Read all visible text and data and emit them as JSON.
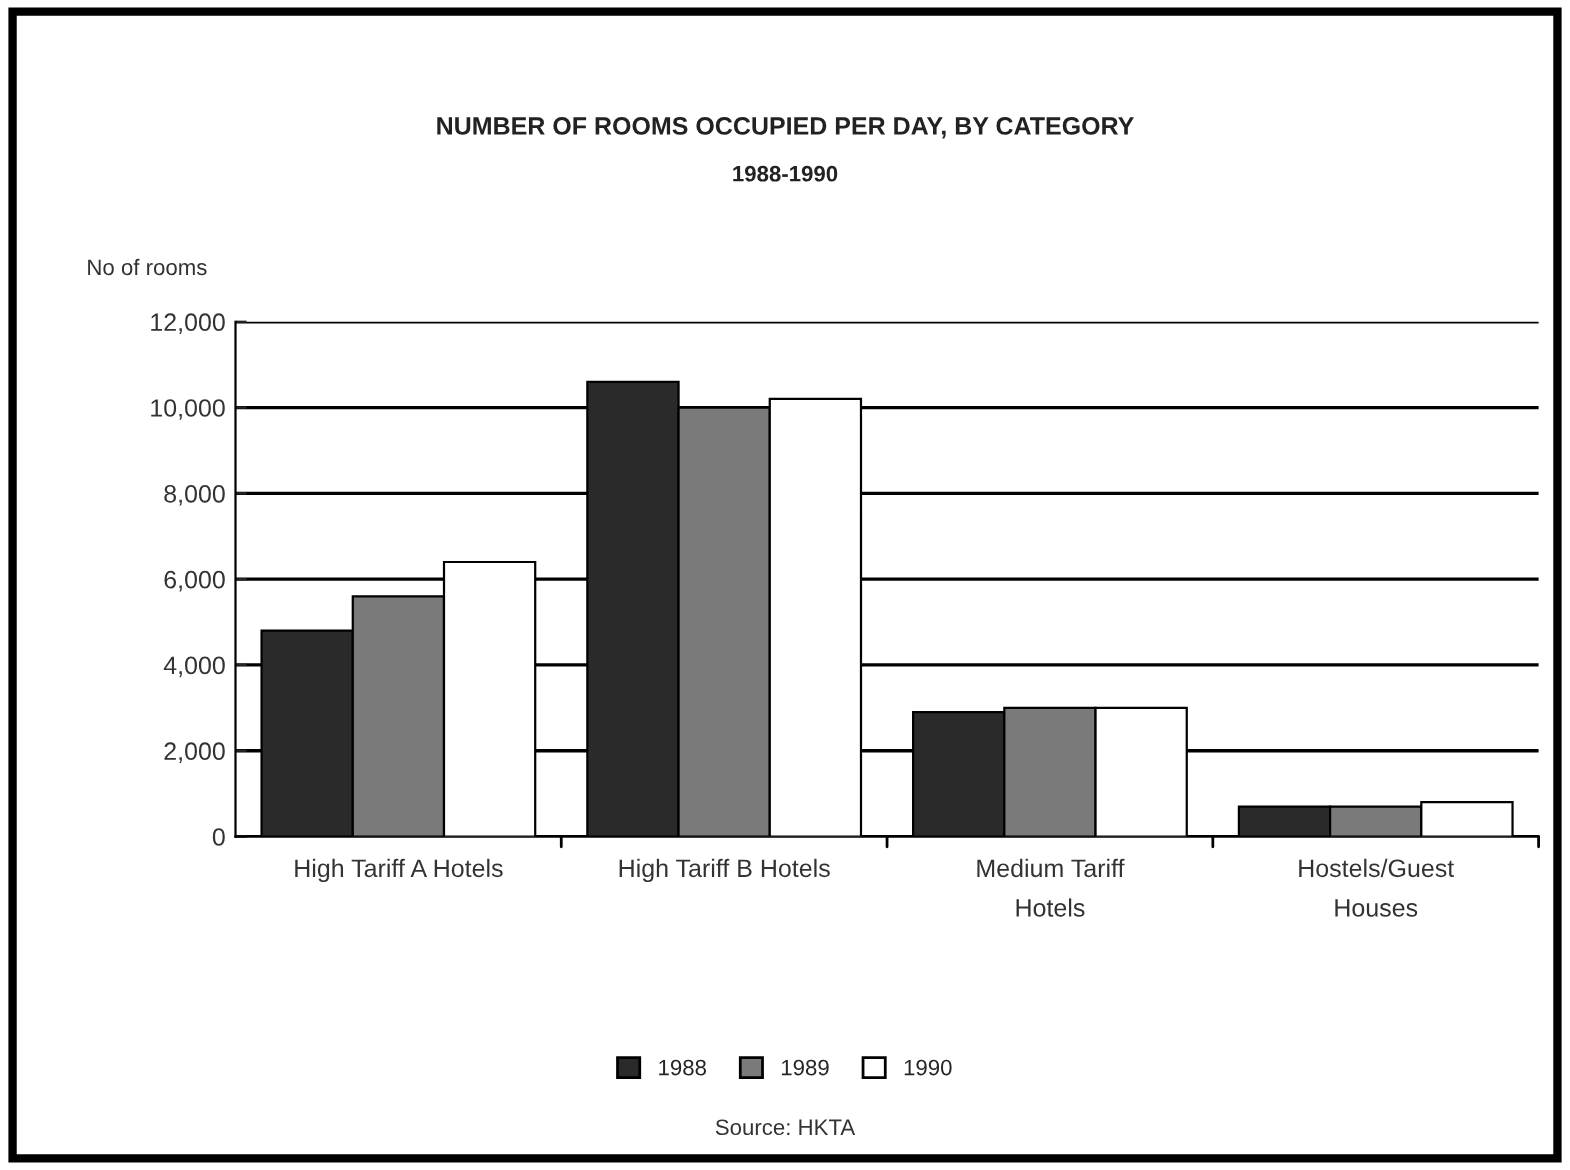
{
  "chart_data": {
    "type": "bar",
    "title": "NUMBER OF ROOMS OCCUPIED PER DAY, BY CATEGORY",
    "subtitle": "1988-1990",
    "ylabel": "No of rooms",
    "categories": [
      "High Tariff A Hotels",
      "High Tariff B Hotels",
      "Medium Tariff\nHotels",
      "Hostels/Guest\nHouses"
    ],
    "series": [
      {
        "name": "1988",
        "color": "#2a2a2a",
        "values": [
          4800,
          10600,
          2900,
          700
        ]
      },
      {
        "name": "1989",
        "color": "#7a7a7a",
        "values": [
          5600,
          10000,
          3000,
          700
        ]
      },
      {
        "name": "1990",
        "color": "#ffffff",
        "values": [
          6400,
          10200,
          3000,
          800
        ]
      }
    ],
    "ylim": [
      0,
      12000
    ],
    "yticks": [
      {
        "value": 0,
        "label": "0"
      },
      {
        "value": 2000,
        "label": "2,000"
      },
      {
        "value": 4000,
        "label": "4,000"
      },
      {
        "value": 6000,
        "label": "6,000"
      },
      {
        "value": 8000,
        "label": "8,000"
      },
      {
        "value": 10000,
        "label": "10,000"
      },
      {
        "value": 12000,
        "label": "12,000"
      }
    ],
    "grid": "y",
    "legend": "bottom",
    "annotations": [
      "Source: HKTA"
    ]
  }
}
